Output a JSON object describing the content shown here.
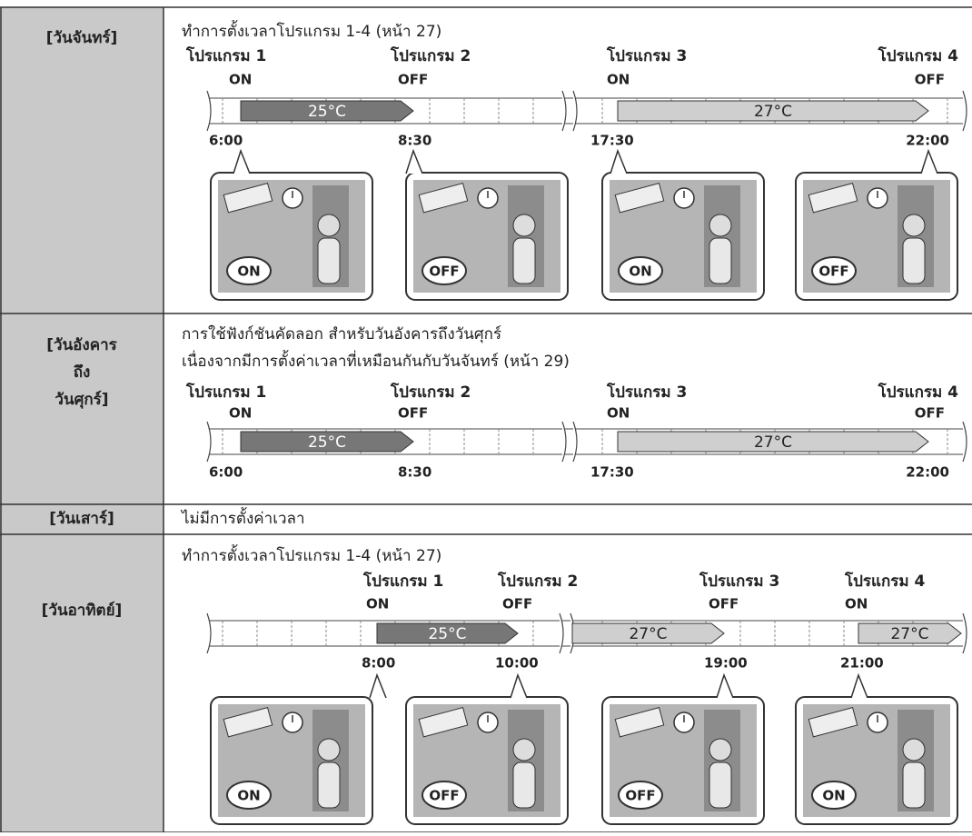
{
  "rows": [
    {
      "day": [
        "[วันจันทร์]"
      ],
      "text": [
        "ทำการตั้งเวลาโปรแกรม 1-4 (หน้า 27)"
      ],
      "programs": [
        {
          "name": "โปรแกรม 1",
          "state": "ON",
          "time": "6:00"
        },
        {
          "name": "โปรแกรม 2",
          "state": "OFF",
          "time": "8:30"
        },
        {
          "name": "โปรแกรม 3",
          "state": "ON",
          "time": "17:30"
        },
        {
          "name": "โปรแกรม 4",
          "state": "OFF",
          "time": "22:00"
        }
      ],
      "segments": [
        "25°C",
        "27°C"
      ],
      "scenes": [
        "ON",
        "OFF",
        "ON",
        "OFF"
      ]
    },
    {
      "day": [
        "[วันอังคาร",
        "ถึง",
        "วันศุกร์]"
      ],
      "text": [
        "การใช้ฟังก์ชันคัดลอก สำหรับวันอังคารถึงวันศุกร์",
        "เนื่องจากมีการตั้งค่าเวลาที่เหมือนกันกับวันจันทร์ (หน้า 29)"
      ],
      "programs": [
        {
          "name": "โปรแกรม 1",
          "state": "ON",
          "time": "6:00"
        },
        {
          "name": "โปรแกรม 2",
          "state": "OFF",
          "time": "8:30"
        },
        {
          "name": "โปรแกรม 3",
          "state": "ON",
          "time": "17:30"
        },
        {
          "name": "โปรแกรม 4",
          "state": "OFF",
          "time": "22:00"
        }
      ],
      "segments": [
        "25°C",
        "27°C"
      ]
    },
    {
      "day": [
        "[วันเสาร์]"
      ],
      "text": [
        "ไม่มีการตั้งค่าเวลา"
      ]
    },
    {
      "day": [
        "[วันอาทิตย์]"
      ],
      "text": [
        "ทำการตั้งเวลาโปรแกรม 1-4 (หน้า 27)"
      ],
      "programs": [
        {
          "name": "โปรแกรม 1",
          "state": "ON",
          "time": "8:00"
        },
        {
          "name": "โปรแกรม 2",
          "state": "OFF",
          "time": "10:00"
        },
        {
          "name": "โปรแกรม 3",
          "state": "OFF",
          "time": "19:00"
        },
        {
          "name": "โปรแกรม 4",
          "state": "ON",
          "time": "21:00"
        }
      ],
      "segments": [
        "25°C",
        "27°C",
        "27°C"
      ],
      "scenes": [
        "ON",
        "OFF",
        "OFF",
        "ON"
      ]
    }
  ]
}
